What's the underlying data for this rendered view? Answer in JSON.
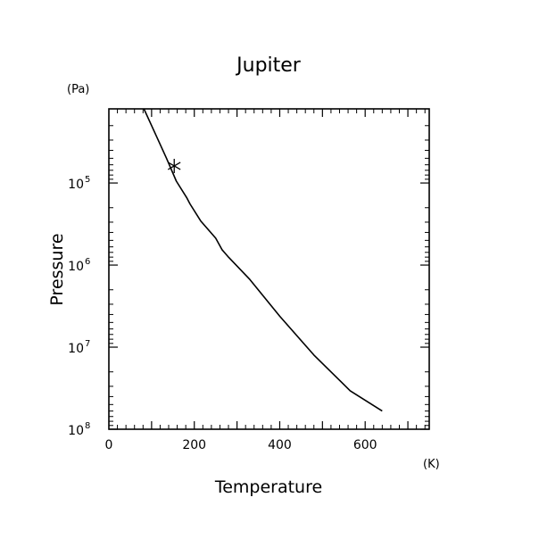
{
  "chart_data": {
    "type": "line",
    "title": "Jupiter",
    "xlabel": "Temperature",
    "ylabel": "Pressure",
    "xunit": "(K)",
    "yunit": "(Pa)",
    "xlim": [
      0,
      750
    ],
    "ylim": [
      100000000,
      12500
    ],
    "yscale": "log",
    "y_inverted": true,
    "grid": false,
    "x_ticks": [
      {
        "value": 0,
        "label": "0"
      },
      {
        "value": 200,
        "label": "200"
      },
      {
        "value": 400,
        "label": "400"
      },
      {
        "value": 600,
        "label": "600"
      }
    ],
    "y_ticks": [
      {
        "value": 100000,
        "label": "10",
        "exponent": "5"
      },
      {
        "value": 1000000,
        "label": "10",
        "exponent": "6"
      },
      {
        "value": 10000000,
        "label": "10",
        "exponent": "7"
      },
      {
        "value": 100000000,
        "label": "10",
        "exponent": "8"
      }
    ],
    "series": [
      {
        "name": "",
        "color": "#000000",
        "x": [
          82,
          110,
          135,
          158,
          182,
          190,
          215,
          250,
          265,
          280,
          330,
          400,
          480,
          565,
          640
        ],
        "y": [
          12500,
          26000,
          50000,
          95000,
          150000,
          180000,
          290000,
          470000,
          650000,
          800000,
          1500000,
          4200000,
          12500000,
          34000000,
          60000000
        ]
      }
    ],
    "markers": [
      {
        "symbol": "asterisk",
        "x": 153,
        "y": 62000
      }
    ]
  }
}
